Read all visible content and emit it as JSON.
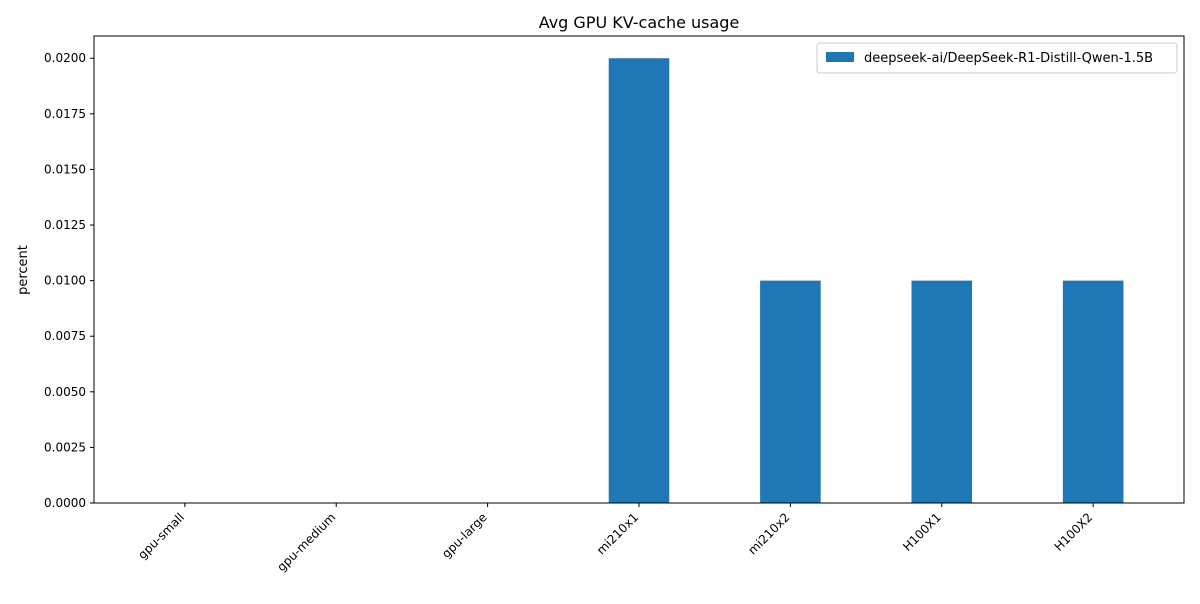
{
  "chart_data": {
    "type": "bar",
    "title": "Avg GPU KV-cache usage",
    "xlabel": "",
    "ylabel": "percent",
    "categories": [
      "gpu-small",
      "gpu-medium",
      "gpu-large",
      "mi210x1",
      "mi210x2",
      "H100X1",
      "H100X2"
    ],
    "series": [
      {
        "name": "deepseek-ai/DeepSeek-R1-Distill-Qwen-1.5B",
        "color": "#1f77b4",
        "values": [
          0,
          0,
          0,
          0.02,
          0.01,
          0.01,
          0.01
        ]
      }
    ],
    "ylim": [
      0,
      0.021
    ],
    "yticks": [
      0.0,
      0.0025,
      0.005,
      0.0075,
      0.01,
      0.0125,
      0.015,
      0.0175,
      0.02
    ],
    "ytick_labels": [
      "0.0000",
      "0.0025",
      "0.0050",
      "0.0075",
      "0.0100",
      "0.0125",
      "0.0150",
      "0.0175",
      "0.0200"
    ],
    "grid": false,
    "legend_position": "top-right",
    "xtick_rotation": 45
  }
}
